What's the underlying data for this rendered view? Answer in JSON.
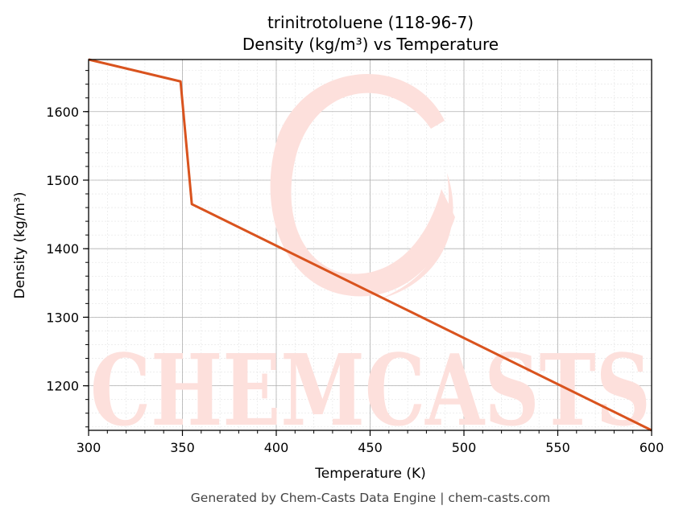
{
  "colors": {
    "line": "#d9531e",
    "watermark": "#fde0dc",
    "grid_major": "#b0b0b0",
    "grid_minor": "#e4e4e4",
    "footer": "#444444"
  },
  "watermark": {
    "text": "CHEMCASTS"
  },
  "footer": {
    "text": "Generated by Chem-Casts Data Engine | chem-casts.com"
  },
  "chart_data": {
    "type": "line",
    "title": "trinitrotoluene (118-96-7)",
    "subtitle": "Density (kg/m³) vs Temperature",
    "xlabel": "Temperature (K)",
    "ylabel": "Density (kg/m³)",
    "xlim": [
      300,
      600
    ],
    "ylim": [
      1135,
      1676
    ],
    "xticks": [
      300,
      350,
      400,
      450,
      500,
      550,
      600
    ],
    "yticks": [
      1200,
      1300,
      1400,
      1500,
      1600
    ],
    "x_minor_step": 10,
    "y_minor_step": 20,
    "grid": true,
    "series": [
      {
        "x": [
          300,
          349,
          355,
          600
        ],
        "y": [
          1676,
          1644,
          1465,
          1135
        ]
      }
    ]
  }
}
